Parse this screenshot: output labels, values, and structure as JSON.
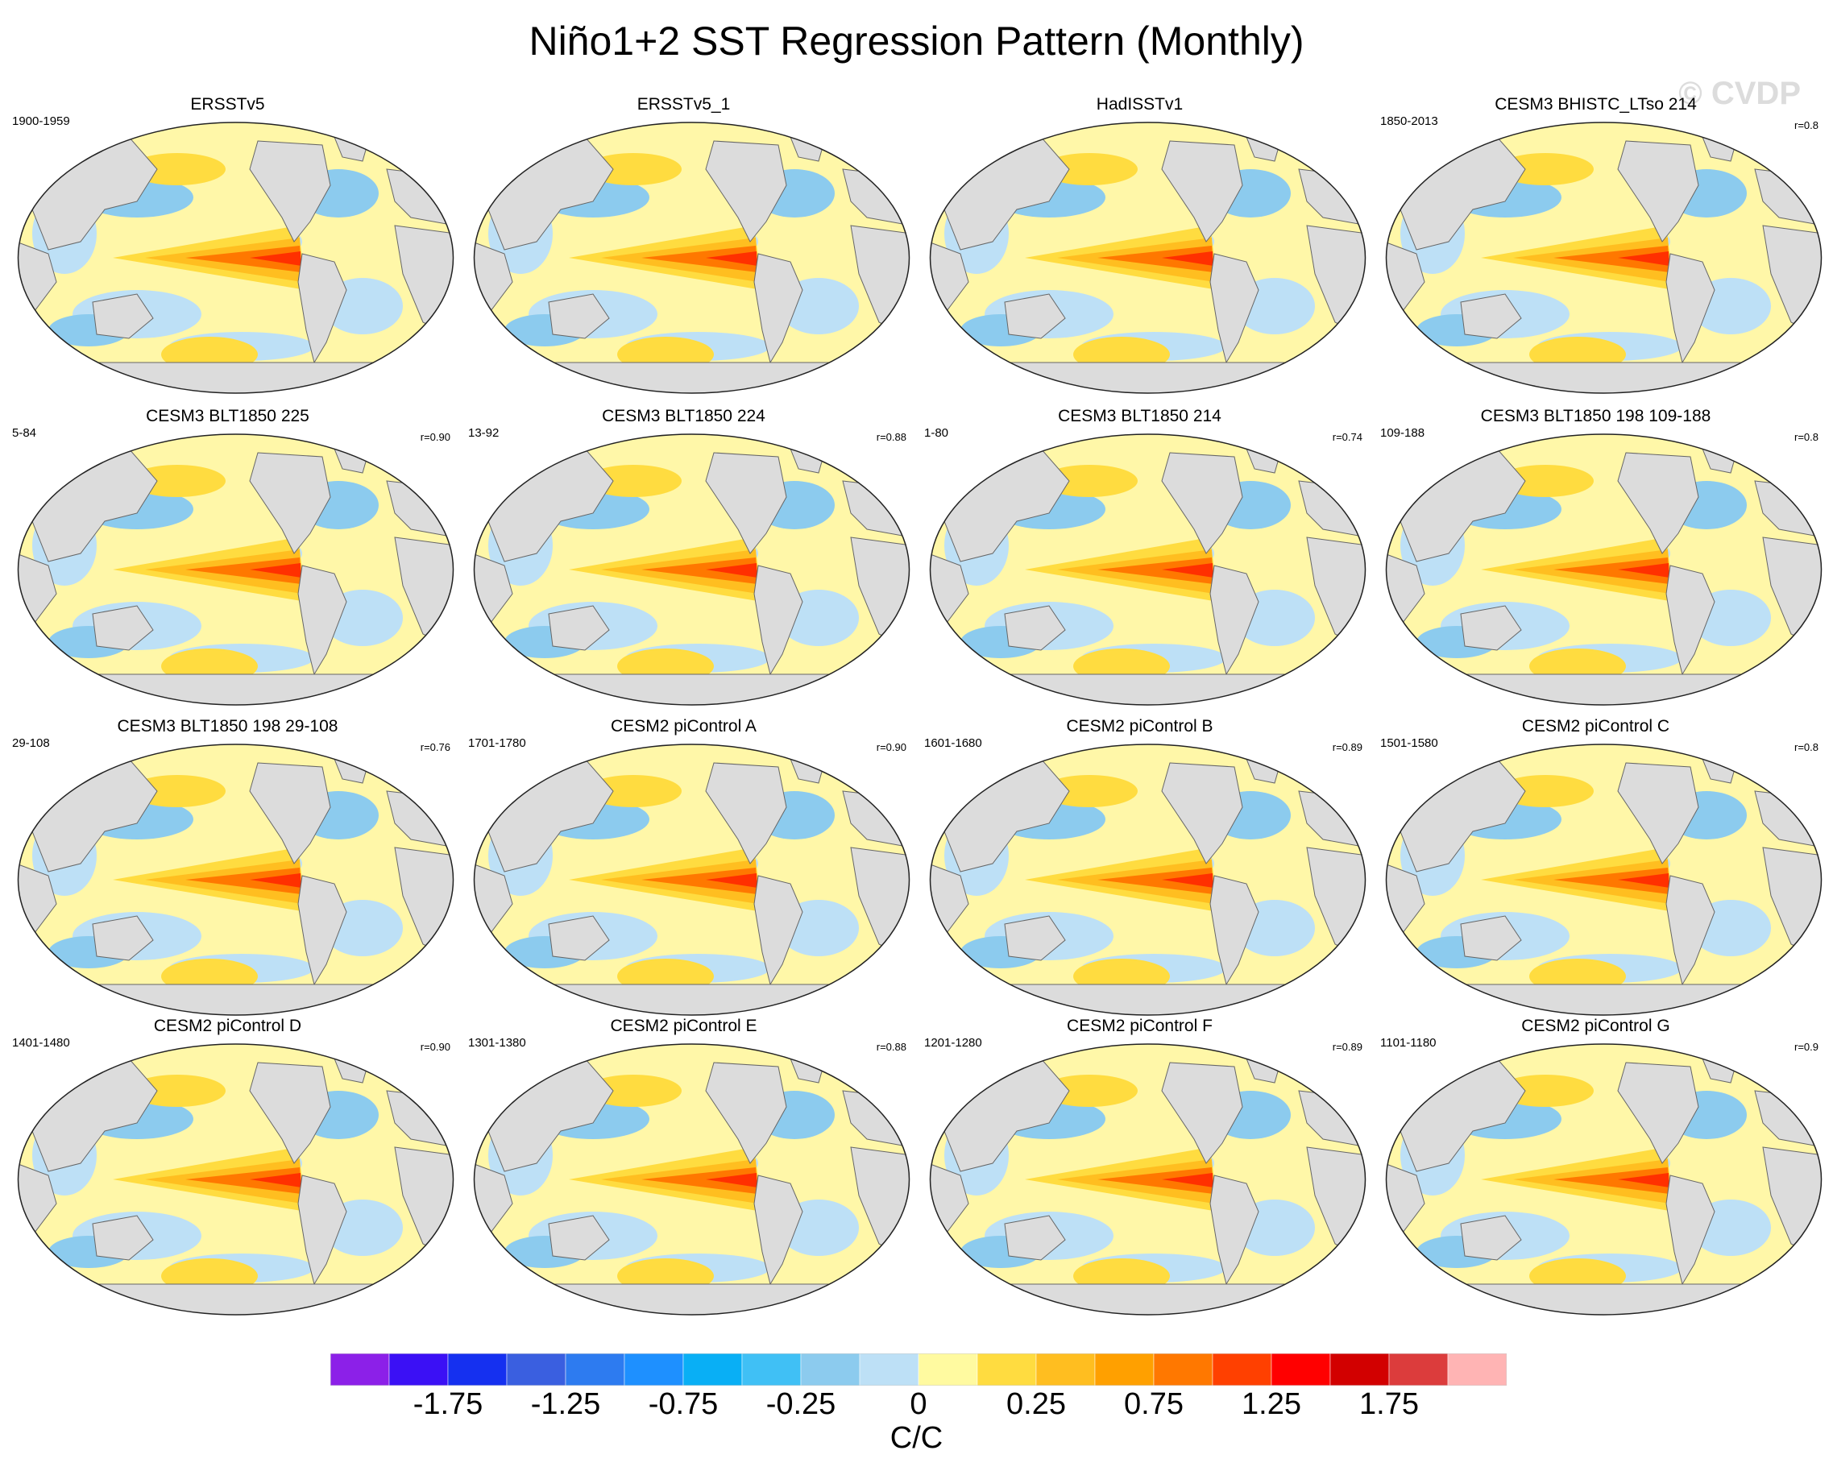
{
  "title": "Niño1+2 SST Regression Pattern (Monthly)",
  "watermark": "© CVDP",
  "panels": [
    {
      "title": "ERSSTv5",
      "years": "1900-1959",
      "r": "",
      "icon": "world-map-sst-pattern"
    },
    {
      "title": "ERSSTv5_1",
      "years": "",
      "r": "",
      "icon": "world-map-sst-pattern"
    },
    {
      "title": "HadISSTv1",
      "years": "",
      "r": "",
      "icon": "world-map-sst-pattern"
    },
    {
      "title": "CESM3 BHISTC_LTso 214",
      "years": "1850-2013",
      "r": "r=0.8",
      "icon": "world-map-sst-pattern"
    },
    {
      "title": "CESM3 BLT1850 225",
      "years": "5-84",
      "r": "r=0.90",
      "icon": "world-map-sst-pattern"
    },
    {
      "title": "CESM3 BLT1850 224",
      "years": "13-92",
      "r": "r=0.88",
      "icon": "world-map-sst-pattern"
    },
    {
      "title": "CESM3 BLT1850 214",
      "years": "1-80",
      "r": "r=0.74",
      "icon": "world-map-sst-pattern"
    },
    {
      "title": "CESM3 BLT1850 198 109-188",
      "years": "109-188",
      "r": "r=0.8",
      "icon": "world-map-sst-pattern"
    },
    {
      "title": "CESM3 BLT1850 198 29-108",
      "years": "29-108",
      "r": "r=0.76",
      "icon": "world-map-sst-pattern"
    },
    {
      "title": "CESM2 piControl A",
      "years": "1701-1780",
      "r": "r=0.90",
      "icon": "world-map-sst-pattern"
    },
    {
      "title": "CESM2 piControl B",
      "years": "1601-1680",
      "r": "r=0.89",
      "icon": "world-map-sst-pattern"
    },
    {
      "title": "CESM2 piControl C",
      "years": "1501-1580",
      "r": "r=0.8",
      "icon": "world-map-sst-pattern"
    },
    {
      "title": "CESM2 piControl D",
      "years": "1401-1480",
      "r": "r=0.90",
      "icon": "world-map-sst-pattern"
    },
    {
      "title": "CESM2 piControl E",
      "years": "1301-1380",
      "r": "r=0.88",
      "icon": "world-map-sst-pattern"
    },
    {
      "title": "CESM2 piControl F",
      "years": "1201-1280",
      "r": "r=0.89",
      "icon": "world-map-sst-pattern"
    },
    {
      "title": "CESM2 piControl G",
      "years": "1101-1180",
      "r": "r=0.9",
      "icon": "world-map-sst-pattern"
    }
  ],
  "colorbar": {
    "units": "C/C",
    "labels": [
      "-1.75",
      "-1.25",
      "-0.75",
      "-0.25",
      "0",
      "0.25",
      "0.75",
      "1.25",
      "1.75"
    ],
    "colors": [
      "#8c20e8",
      "#3b10f5",
      "#1530f0",
      "#3a5fe0",
      "#2d7bf0",
      "#1e90ff",
      "#09aff5",
      "#40c0f5",
      "#8ccbee",
      "#bde0f6",
      "#fffaa0",
      "#ffdc40",
      "#ffbe20",
      "#ffa000",
      "#ff7800",
      "#ff4000",
      "#ff0000",
      "#d20000",
      "#dc3c3c",
      "#ffb4b4"
    ]
  },
  "map_colors": {
    "land": "#dcdcdc",
    "ocean_neutral": "#fff7a8",
    "cool": "#bde0f6",
    "cool_strong": "#8ccbee",
    "warm": "#ffdc40",
    "warm_mid": "#ffbe20",
    "warm_strong": "#ff7800",
    "hot": "#ff3000"
  }
}
